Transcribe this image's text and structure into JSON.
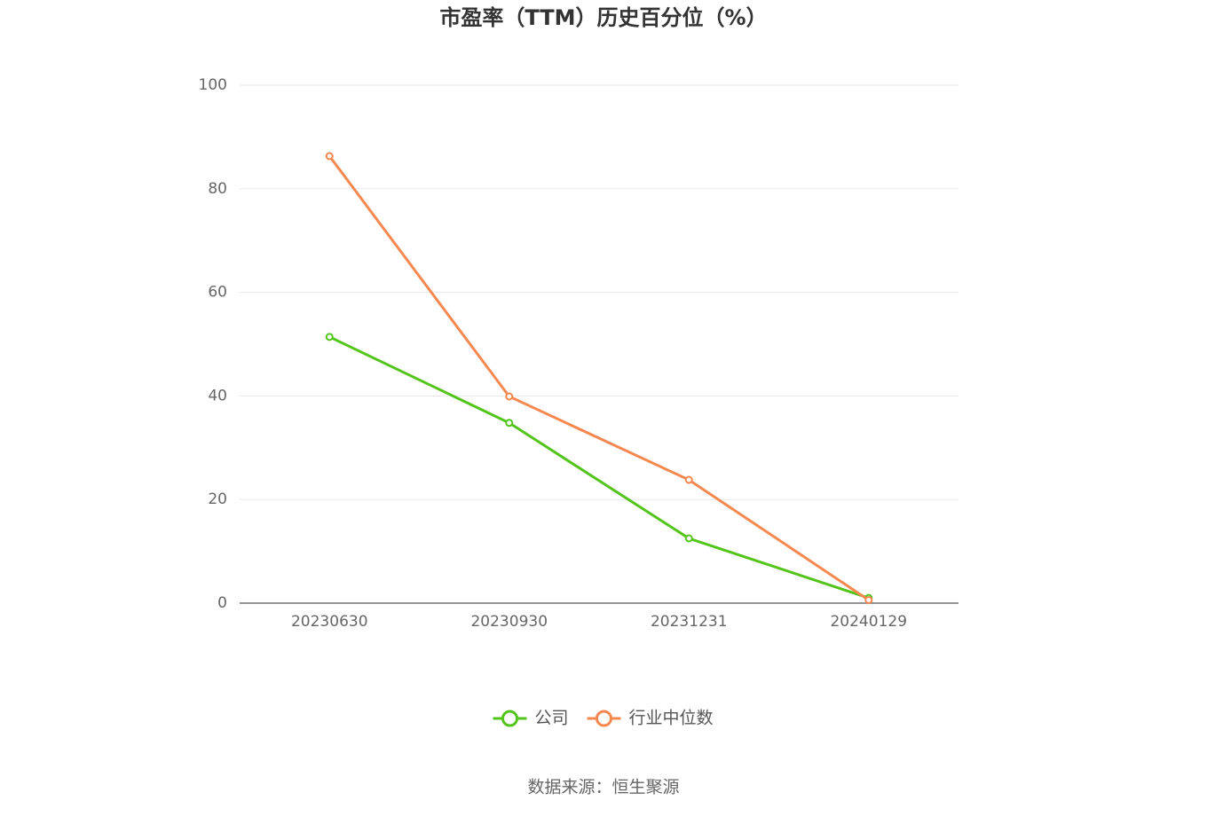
{
  "chart_data": {
    "type": "line",
    "title": "市盈率（TTM）历史百分位（%）",
    "categories": [
      "20230630",
      "20230930",
      "20231231",
      "20240129"
    ],
    "series": [
      {
        "name": "公司",
        "color": "#52c41a",
        "values": [
          51.4,
          34.8,
          12.5,
          1.0
        ]
      },
      {
        "name": "行业中位数",
        "color": "#f5884f",
        "values": [
          86.3,
          39.9,
          23.8,
          0.6
        ]
      }
    ],
    "ylim": [
      0,
      100
    ],
    "yticks": [
      0,
      20,
      40,
      60,
      80,
      100
    ],
    "grid": true,
    "legend": "bottom",
    "source": "数据来源：恒生聚源"
  }
}
